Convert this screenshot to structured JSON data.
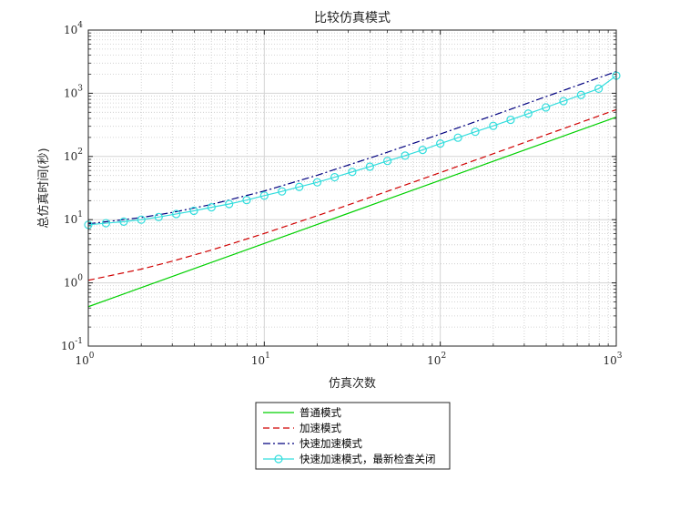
{
  "chart_data": {
    "type": "line",
    "title": "比较仿真模式",
    "xlabel": "仿真次数",
    "ylabel": "总仿真时间(秒)",
    "xscale": "log",
    "yscale": "log",
    "xlim": [
      1,
      1000
    ],
    "ylim": [
      0.1,
      10000
    ],
    "grid": true,
    "minor_grid": true,
    "legend_position": "below-plot",
    "x_ticks": [
      {
        "base": "10",
        "exp": "0"
      },
      {
        "base": "10",
        "exp": "1"
      },
      {
        "base": "10",
        "exp": "2"
      },
      {
        "base": "10",
        "exp": "3"
      }
    ],
    "y_ticks": [
      {
        "base": "10",
        "exp": "-1"
      },
      {
        "base": "10",
        "exp": "0"
      },
      {
        "base": "10",
        "exp": "1"
      },
      {
        "base": "10",
        "exp": "2"
      },
      {
        "base": "10",
        "exp": "3"
      },
      {
        "base": "10",
        "exp": "4"
      }
    ],
    "series": [
      {
        "name": "普通模式",
        "color": "#00d000",
        "dash": "",
        "marker": "none",
        "x": [
          1,
          2,
          5,
          10,
          20,
          50,
          100,
          200,
          500,
          1000
        ],
        "y": [
          0.42,
          0.84,
          2.1,
          4.2,
          8.4,
          21,
          42,
          84,
          210,
          420
        ]
      },
      {
        "name": "加速模式",
        "color": "#d00000",
        "dash": "7,4",
        "marker": "none",
        "x": [
          1,
          2,
          3,
          5,
          10,
          20,
          50,
          100,
          200,
          500,
          1000
        ],
        "y": [
          1.1,
          1.65,
          2.2,
          3.3,
          6.05,
          11.55,
          28.05,
          55.55,
          110.5,
          275.5,
          550.5
        ]
      },
      {
        "name": "快速加速模式",
        "color": "#00007f",
        "dash": "8,3,2,3",
        "marker": "none",
        "x": [
          1,
          2,
          3,
          5,
          10,
          20,
          50,
          100,
          200,
          500,
          1000
        ],
        "y": [
          8.6,
          10.8,
          13.0,
          17.4,
          28.4,
          50.4,
          116.4,
          226,
          446,
          1106,
          2206
        ]
      },
      {
        "name": "快速加速模式，最新检查关闭",
        "color": "#33dddd",
        "dash": "",
        "marker": "circle",
        "x": [
          1,
          1.26,
          1.59,
          2,
          2.51,
          3.16,
          3.98,
          5.01,
          6.31,
          7.94,
          10,
          12.6,
          15.8,
          20,
          25.1,
          31.6,
          39.8,
          50.1,
          63.1,
          79.4,
          100,
          126,
          158,
          200,
          251,
          316,
          398,
          501,
          631,
          794,
          1000
        ],
        "y": [
          8.3,
          8.8,
          9.3,
          10.0,
          11.0,
          12.3,
          13.8,
          15.7,
          17.7,
          20.4,
          24.0,
          28.0,
          33.0,
          39.0,
          47.0,
          57.0,
          69.0,
          85.0,
          103.0,
          127.0,
          160.0,
          198.0,
          246.0,
          305.0,
          380.0,
          476.0,
          597.0,
          750.0,
          940.0,
          1180.0,
          1900.0
        ]
      }
    ]
  }
}
